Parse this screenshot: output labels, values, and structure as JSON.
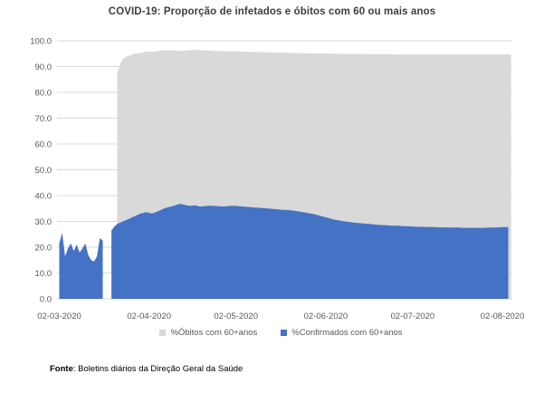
{
  "title": "COVID-19: Proporção de infetados e óbitos com 60 ou mais anos",
  "source": {
    "label": "Fonte",
    "rest": ": Boletins diários da Direção Geral da Saúde"
  },
  "legend": {
    "position": "bottom",
    "items": [
      {
        "label": "%Óbitos com 60+anos",
        "color": "#d9d9d9"
      },
      {
        "label": "%Confirmados com 60+anos",
        "color": "#4472c4"
      }
    ]
  },
  "colors": {
    "series_obitos": "#d9d9d9",
    "series_confirmados": "#4472c4",
    "gridline": "#d9d9d9",
    "axis_text": "#595959",
    "title_text": "#3f3f3f",
    "background": "#ffffff"
  },
  "chart_data": {
    "type": "area",
    "overlap": true,
    "title": "COVID-19: Proporção de infetados e óbitos com 60 ou mais anos",
    "xlabel": "",
    "ylabel": "",
    "ylim": [
      0,
      100
    ],
    "grid": "horizontal",
    "legend_position": "bottom",
    "x_unit": "day",
    "x_start": "02-03-2020",
    "x_end": "04-08-2020",
    "n_points": 156,
    "x_tick_labels": [
      "02-03-2020",
      "02-04-2020",
      "02-05-2020",
      "02-06-2020",
      "02-07-2020",
      "02-08-2020"
    ],
    "x_tick_day_offsets": [
      0,
      31,
      61,
      92,
      122,
      153
    ],
    "y_ticks": [
      0,
      10,
      20,
      30,
      40,
      50,
      60,
      70,
      80,
      90,
      100
    ],
    "y_tick_labels": [
      "0.0",
      "10.0",
      "20.0",
      "30.0",
      "40.0",
      "50.0",
      "60.0",
      "70.0",
      "80.0",
      "90.0",
      "100.0"
    ],
    "missing_data_note": "gap 18-19 March in confirmados; óbitos series starts 22 March",
    "series": [
      {
        "name": "%Óbitos com 60+anos",
        "color": "#d9d9d9",
        "values": [
          null,
          null,
          null,
          null,
          null,
          null,
          null,
          null,
          null,
          null,
          null,
          null,
          null,
          null,
          null,
          null,
          null,
          null,
          null,
          null,
          87.5,
          91.0,
          93.0,
          93.8,
          94.2,
          94.5,
          95.0,
          95.2,
          95.3,
          95.5,
          96.0,
          95.8,
          95.7,
          95.8,
          96.0,
          96.2,
          96.3,
          96.4,
          96.3,
          96.2,
          96.2,
          96.1,
          96.0,
          96.1,
          96.2,
          96.3,
          96.4,
          96.5,
          96.4,
          96.3,
          96.3,
          96.2,
          96.2,
          96.1,
          96.1,
          96.0,
          96.0,
          96.0,
          96.0,
          95.9,
          95.9,
          95.9,
          95.8,
          95.8,
          95.8,
          95.7,
          95.7,
          95.7,
          95.6,
          95.6,
          95.6,
          95.5,
          95.5,
          95.5,
          95.4,
          95.4,
          95.4,
          95.4,
          95.3,
          95.3,
          95.3,
          95.3,
          95.2,
          95.2,
          95.2,
          95.2,
          95.2,
          95.1,
          95.1,
          95.1,
          95.1,
          95.1,
          95.0,
          95.0,
          95.0,
          95.0,
          95.0,
          95.0,
          94.9,
          94.9,
          94.9,
          94.9,
          94.9,
          94.9,
          94.9,
          94.9,
          94.8,
          94.8,
          94.8,
          94.8,
          94.8,
          94.8,
          94.8,
          94.8,
          94.8,
          94.8,
          94.7,
          94.7,
          94.7,
          94.7,
          94.7,
          94.7,
          94.7,
          94.7,
          94.7,
          94.7,
          94.7,
          94.7,
          94.7,
          94.7,
          94.7,
          94.7,
          94.7,
          94.7,
          94.7,
          94.7,
          94.7,
          94.7,
          94.7,
          94.7,
          94.7,
          94.7,
          94.7,
          94.7,
          94.7,
          94.7,
          94.7,
          94.7,
          94.7,
          94.7,
          94.7,
          94.7,
          94.7,
          94.7,
          94.7,
          94.7,
          94.7
        ]
      },
      {
        "name": "%Confirmados com 60+anos",
        "color": "#4472c4",
        "values": [
          21.5,
          25.5,
          16.5,
          19.5,
          21.5,
          18.5,
          21.0,
          18.0,
          19.5,
          21.5,
          17.0,
          15.0,
          14.5,
          16.5,
          23.5,
          22.6,
          null,
          null,
          26.5,
          28.0,
          29.0,
          29.5,
          30.0,
          30.5,
          31.0,
          31.5,
          32.0,
          32.5,
          33.0,
          33.3,
          33.6,
          33.3,
          33.1,
          33.4,
          33.9,
          34.4,
          34.9,
          35.3,
          35.6,
          35.9,
          36.2,
          36.6,
          36.8,
          36.5,
          36.2,
          36.0,
          36.1,
          36.2,
          35.9,
          35.8,
          35.9,
          36.0,
          36.1,
          36.0,
          36.0,
          35.9,
          35.8,
          35.8,
          35.9,
          36.0,
          36.0,
          36.0,
          35.9,
          35.8,
          35.7,
          35.6,
          35.5,
          35.4,
          35.3,
          35.3,
          35.2,
          35.1,
          35.0,
          34.9,
          34.8,
          34.7,
          34.6,
          34.5,
          34.5,
          34.4,
          34.3,
          34.1,
          34.0,
          33.8,
          33.6,
          33.4,
          33.2,
          33.0,
          32.8,
          32.5,
          32.2,
          31.9,
          31.6,
          31.3,
          31.0,
          30.7,
          30.5,
          30.3,
          30.1,
          29.9,
          29.8,
          29.6,
          29.5,
          29.4,
          29.3,
          29.2,
          29.1,
          29.0,
          28.9,
          28.8,
          28.7,
          28.6,
          28.6,
          28.5,
          28.4,
          28.4,
          28.3,
          28.3,
          28.2,
          28.2,
          28.1,
          28.1,
          28.0,
          28.0,
          27.9,
          27.9,
          27.9,
          27.8,
          27.8,
          27.8,
          27.8,
          27.7,
          27.7,
          27.7,
          27.7,
          27.6,
          27.6,
          27.6,
          27.6,
          27.5,
          27.5,
          27.5,
          27.5,
          27.5,
          27.5,
          27.5,
          27.5,
          27.5,
          27.6,
          27.6,
          27.6,
          27.7,
          27.7,
          27.8,
          27.8,
          27.8
        ]
      }
    ]
  }
}
